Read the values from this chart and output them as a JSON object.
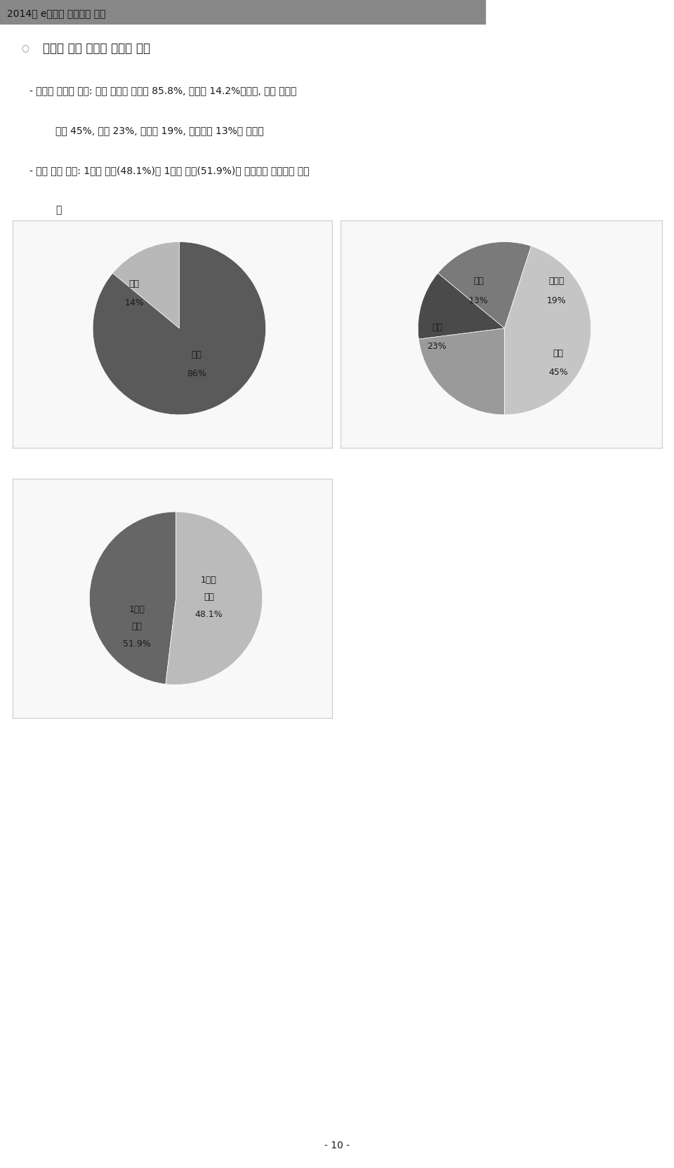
{
  "title": "2014년 e스포츠 실태조사 연구",
  "section_bullet": "경기장 방문 외국인 관람객 특성",
  "bullet1a": "외국인 관람객 특성: 성별 분포는 남자가 85.8%, 여자가 14.2%였으며, 국적 분포는",
  "bullet1b": "북미 45%, 유럽 23%, 아시아 19%, 기타지역 13%로 조사됨",
  "bullet2a": "한국 체류 기간: 1개월 미만(48.1%)과 1개월 이상(51.9%)의 체류자가 비슷하게 분포",
  "bullet2b": "함",
  "page_number": "- 10 -",
  "chart1_values": [
    14,
    86
  ],
  "chart1_colors": [
    "#b8b8b8",
    "#5a5a5a"
  ],
  "chart1_startangle": 90,
  "chart1_label1": "여자",
  "chart1_pct1": "14%",
  "chart1_label2": "남자",
  "chart1_pct2": "86%",
  "chart2_values": [
    19,
    13,
    23,
    45
  ],
  "chart2_colors": [
    "#7a7a7a",
    "#4a4a4a",
    "#9a9a9a",
    "#c5c5c5"
  ],
  "chart2_startangle": 72,
  "chart2_label1": "아시아",
  "chart2_pct1": "19%",
  "chart2_label2": "기타",
  "chart2_pct2": "13%",
  "chart2_label3": "유럽",
  "chart2_pct3": "23%",
  "chart2_label4": "북미",
  "chart2_pct4": "45%",
  "chart3_values": [
    48.1,
    51.9
  ],
  "chart3_colors": [
    "#666666",
    "#bbbbbb"
  ],
  "chart3_startangle": 90,
  "chart3_label1": "1개월\n미만",
  "chart3_pct1": "48.1%",
  "chart3_label2": "1개월\n이상",
  "chart3_pct2": "51.9%",
  "bg_color": "#ffffff",
  "box_fc": "#f8f8f8",
  "box_ec": "#cccccc",
  "header_bar_color": "#888888",
  "text_color": "#1a1a1a",
  "pie_label_fs": 9,
  "bullet_fs": 10,
  "section_fs": 12,
  "title_fs": 10
}
